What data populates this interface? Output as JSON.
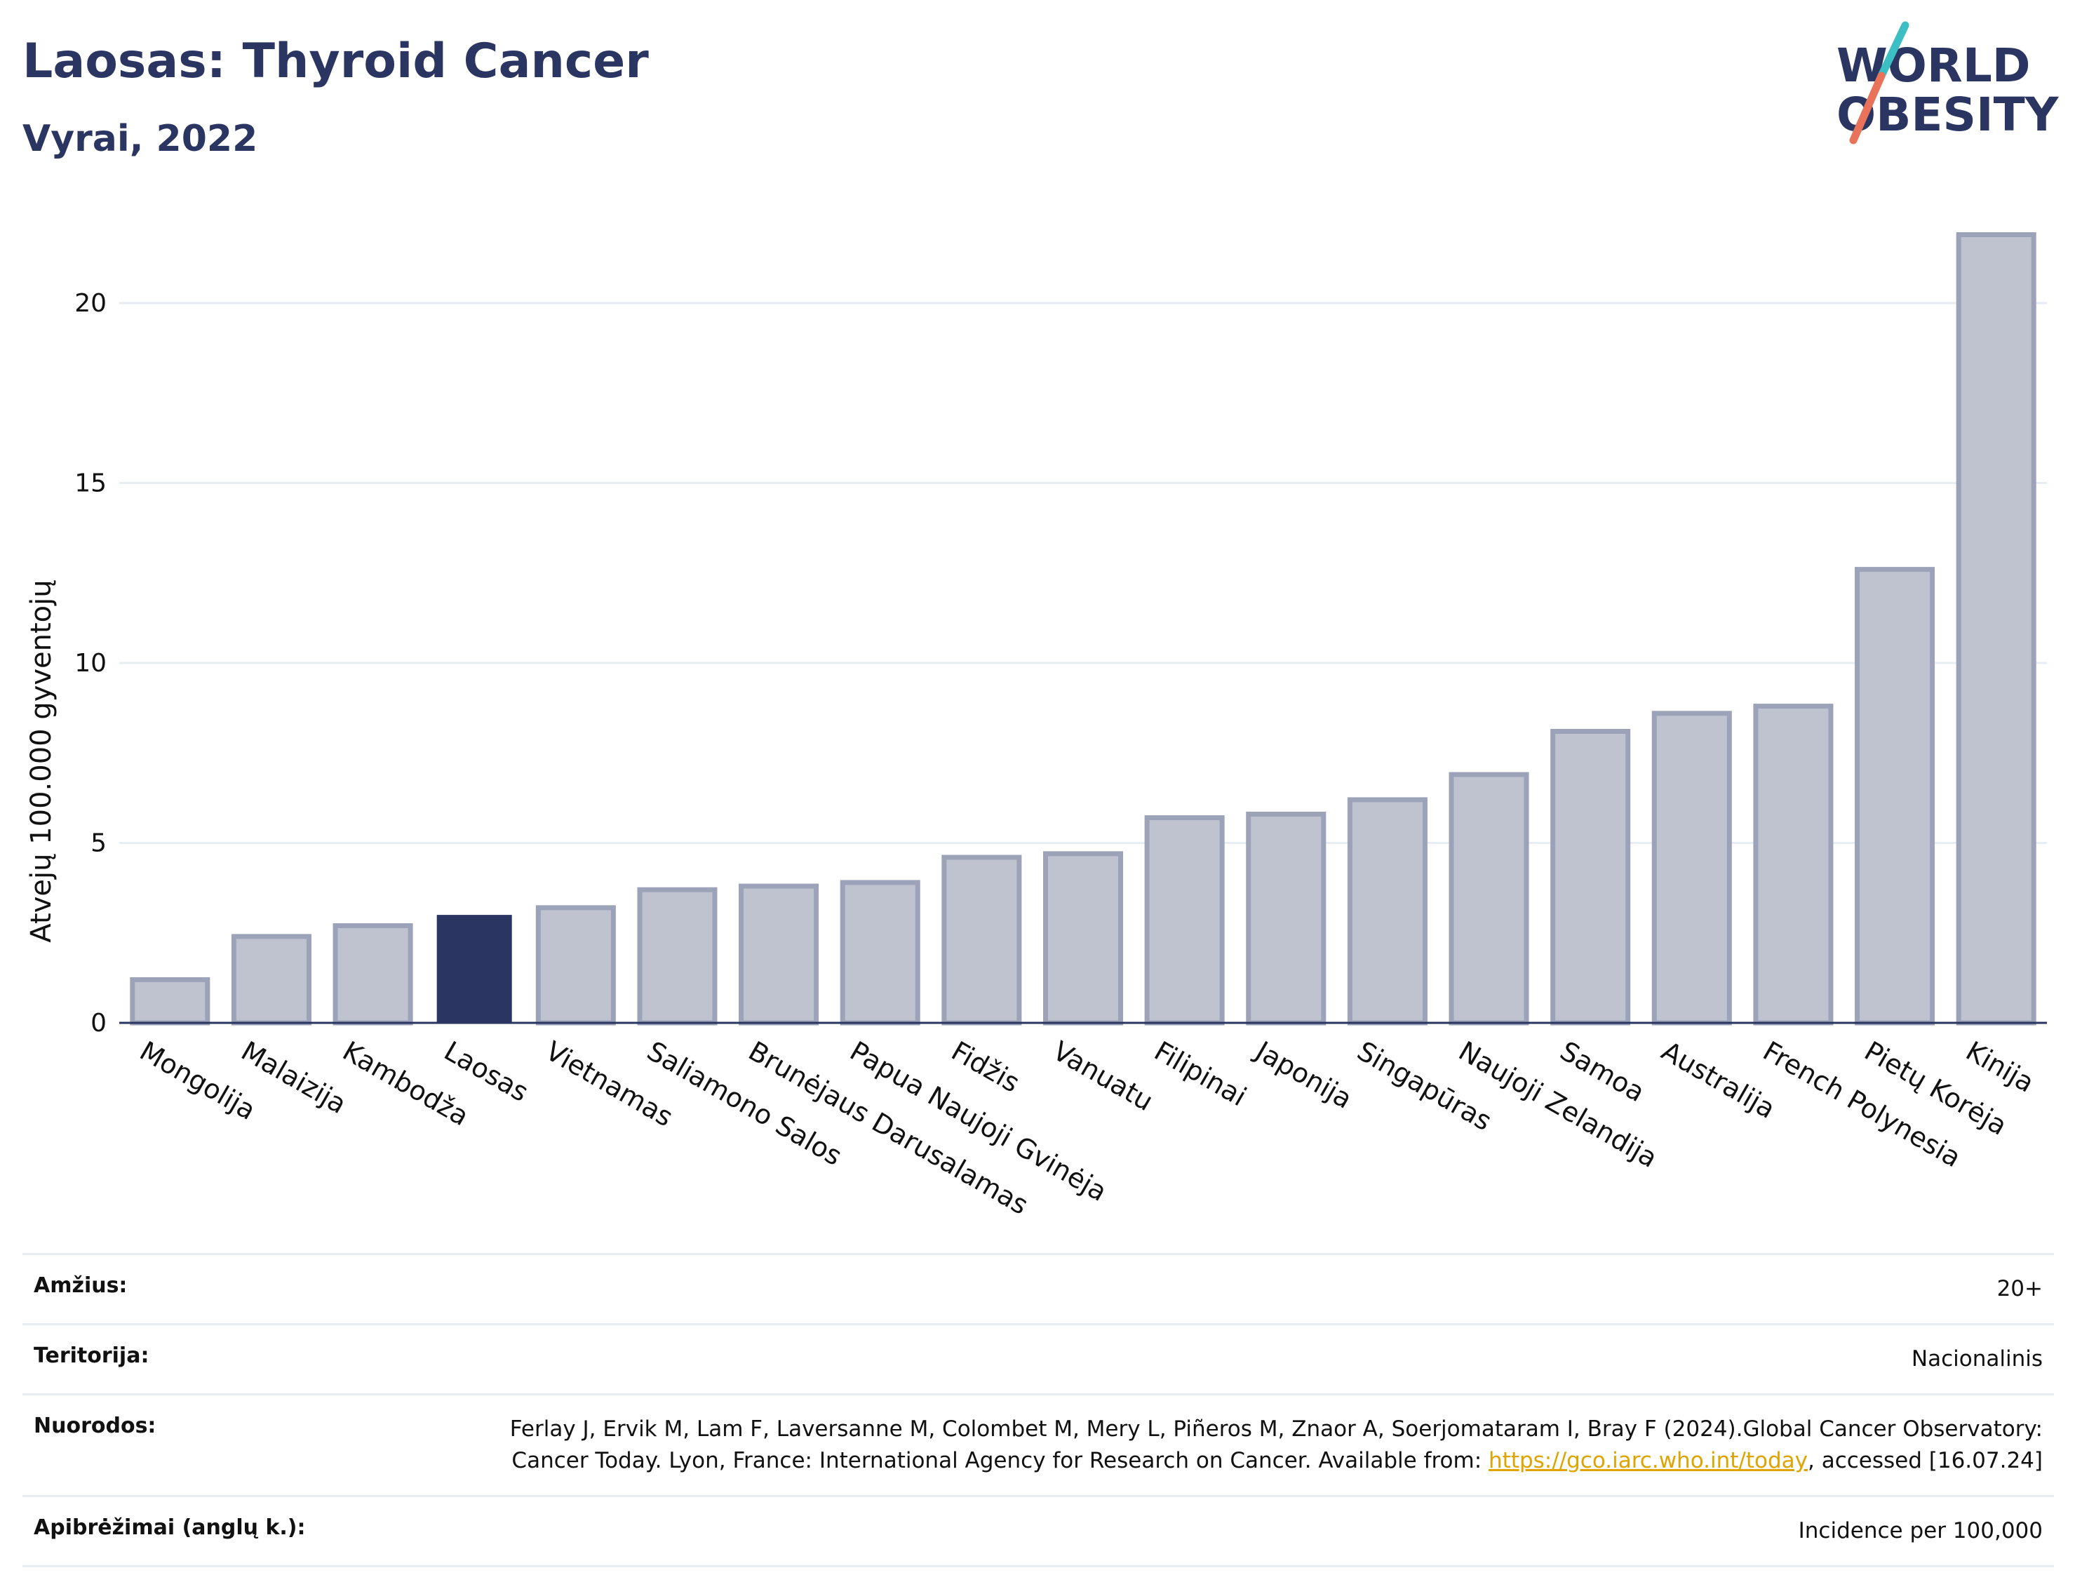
{
  "header": {
    "title": "Laosas: Thyroid Cancer",
    "subtitle": "Vyrai, 2022"
  },
  "logo": {
    "line1": "WORLD",
    "line2": "OBESITY",
    "colors": {
      "text": "#2b3561",
      "slash_top": "#3bbfc4",
      "slash_bottom": "#e8735a"
    }
  },
  "chart_data": {
    "type": "bar",
    "title": "Laosas: Thyroid Cancer",
    "subtitle": "Vyrai, 2022",
    "xlabel": "",
    "ylabel": "Atvejų 100.000 gyventojų",
    "ylim": [
      0,
      22.5
    ],
    "yticks": [
      0,
      5,
      10,
      15,
      20
    ],
    "grid": true,
    "categories": [
      "Mongolija",
      "Malaizija",
      "Kambodža",
      "Laosas",
      "Vietnamas",
      "Saliamono Salos",
      "Brunėjaus Darusalamas",
      "Papua Naujoji Gvinėja",
      "Fidžis",
      "Vanuatu",
      "Filipinai",
      "Japonija",
      "Singapūras",
      "Naujoji Zelandija",
      "Samoa",
      "Australija",
      "French Polynesia",
      "Pietų Korėja",
      "Kinija"
    ],
    "values": [
      1.2,
      2.4,
      2.7,
      3.0,
      3.2,
      3.7,
      3.8,
      3.9,
      4.6,
      4.7,
      5.7,
      5.8,
      6.2,
      6.9,
      8.1,
      8.6,
      8.8,
      12.6,
      21.9
    ],
    "highlight": "Laosas",
    "colors": {
      "bar": "#bfc3d0",
      "bar_edge": "#9ca2b8",
      "highlight": "#2b3561",
      "grid": "#e6edf3",
      "axis": "#2b3561"
    }
  },
  "info": {
    "age_label": "Amžius:",
    "age_value": "20+",
    "territory_label": "Teritorija:",
    "territory_value": "Nacionalinis",
    "refs_label": "Nuorodos:",
    "refs_text1": "Ferlay J, Ervik M, Lam F, Laversanne M, Colombet M, Mery L, Piñeros M, Znaor A, Soerjomataram I, Bray F (2024).Global Cancer Observatory: Cancer Today. Lyon, France: International Agency for Research on Cancer. Available from: ",
    "refs_link": "https://gco.iarc.who.int/today",
    "refs_text2": ", accessed [16.07.24]",
    "defs_label": "Apibrėžimai (anglų k.):",
    "defs_value": "Incidence per 100,000"
  }
}
